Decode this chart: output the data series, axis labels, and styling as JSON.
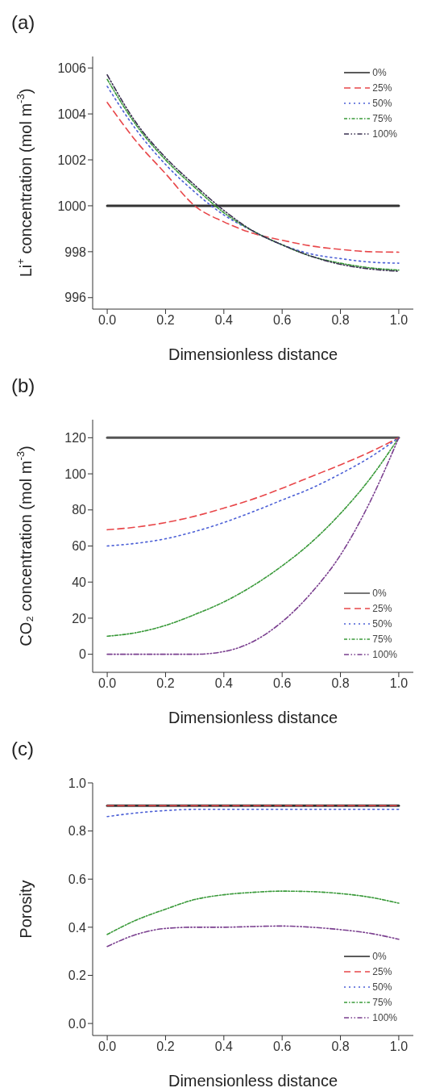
{
  "chart_data": [
    {
      "type": "line",
      "title": "(a)",
      "xlabel": "Dimensionless distance",
      "ylabel": "Li$^{+}$ concentration (mol m$^{-3}$)",
      "x": [
        0,
        0.1,
        0.2,
        0.3,
        0.4,
        0.5,
        0.6,
        0.7,
        0.8,
        0.9,
        1.0
      ],
      "xlim": [
        -0.05,
        1.05
      ],
      "xticks": [
        {
          "value": 0,
          "label": "0.0"
        },
        {
          "value": 0.2,
          "label": "0.2"
        },
        {
          "value": 0.4,
          "label": "0.4"
        },
        {
          "value": 0.6,
          "label": "0.6"
        },
        {
          "value": 0.8,
          "label": "0.8"
        },
        {
          "value": 1.0,
          "label": "1.0"
        }
      ],
      "ylim": [
        995.5,
        1006.5
      ],
      "yticks": [
        996,
        998,
        1000,
        1002,
        1004,
        1006
      ],
      "grid": false,
      "legend": "top right",
      "marker": "none",
      "series": [
        {
          "name": "0%",
          "color": "#333333",
          "line_style": "solid",
          "values": [
            1000,
            1000,
            1000,
            1000,
            1000,
            1000,
            1000,
            1000,
            1000,
            1000,
            1000
          ]
        },
        {
          "name": "25%",
          "color": "#e8474a",
          "line_style": "dashed",
          "values": [
            1004.5,
            1002.8,
            1001.4,
            1000.0,
            999.3,
            998.8,
            998.5,
            998.25,
            998.1,
            998.0,
            997.98
          ]
        },
        {
          "name": "50%",
          "color": "#4b5fd6",
          "line_style": "dotted",
          "values": [
            1005.2,
            1003.3,
            1001.8,
            1000.6,
            999.6,
            998.9,
            998.3,
            997.9,
            997.7,
            997.55,
            997.5
          ]
        },
        {
          "name": "75%",
          "color": "#3a9a3a",
          "line_style": "dashdot",
          "values": [
            1005.5,
            1003.5,
            1002.0,
            1000.8,
            999.7,
            998.9,
            998.3,
            997.8,
            997.5,
            997.3,
            997.2
          ]
        },
        {
          "name": "100%",
          "color": "#3a3050",
          "line_style": "dashdotdot",
          "values": [
            1005.7,
            1003.6,
            1002.1,
            1000.9,
            999.8,
            998.9,
            998.3,
            997.8,
            997.45,
            997.25,
            997.15
          ]
        }
      ]
    },
    {
      "type": "line",
      "title": "(b)",
      "xlabel": "Dimensionless distance",
      "ylabel": "CO₂ concentration (mol m$^{-3}$)",
      "x": [
        0,
        0.1,
        0.2,
        0.3,
        0.4,
        0.5,
        0.6,
        0.7,
        0.8,
        0.9,
        1.0
      ],
      "xlim": [
        -0.05,
        1.05
      ],
      "xticks": [
        {
          "value": 0,
          "label": "0.0"
        },
        {
          "value": 0.2,
          "label": "0.2"
        },
        {
          "value": 0.4,
          "label": "0.4"
        },
        {
          "value": 0.6,
          "label": "0.6"
        },
        {
          "value": 0.8,
          "label": "0.8"
        },
        {
          "value": 1.0,
          "label": "1.0"
        }
      ],
      "ylim": [
        -10,
        130
      ],
      "yticks": [
        0,
        20,
        40,
        60,
        80,
        100,
        120
      ],
      "grid": false,
      "legend": "bottom right",
      "marker": "none",
      "series": [
        {
          "name": "0%",
          "color": "#555555",
          "line_style": "solid",
          "values": [
            120,
            120,
            120,
            120,
            120,
            120,
            120,
            120,
            120,
            120,
            120
          ]
        },
        {
          "name": "25%",
          "color": "#e8474a",
          "line_style": "dashed",
          "values": [
            69,
            70.5,
            73,
            76.5,
            81,
            86,
            92,
            98.5,
            105,
            112,
            120
          ]
        },
        {
          "name": "50%",
          "color": "#4b5fd6",
          "line_style": "dotted",
          "values": [
            60,
            61.5,
            64,
            68,
            73,
            79,
            85.5,
            92,
            100,
            109,
            120
          ]
        },
        {
          "name": "75%",
          "color": "#3a9a3a",
          "line_style": "dashdot",
          "values": [
            10,
            12,
            16,
            22,
            29,
            38,
            49,
            62,
            78,
            97,
            120
          ]
        },
        {
          "name": "100%",
          "color": "#7a3f8f",
          "line_style": "dashdotdot",
          "values": [
            0,
            0,
            0,
            0,
            1.5,
            7,
            18,
            34,
            55,
            84,
            120
          ]
        }
      ]
    },
    {
      "type": "line",
      "title": "(c)",
      "xlabel": "Dimensionless distance",
      "ylabel": "Porosity",
      "x": [
        0,
        0.1,
        0.2,
        0.3,
        0.4,
        0.5,
        0.6,
        0.7,
        0.8,
        0.9,
        1.0
      ],
      "xlim": [
        -0.05,
        1.05
      ],
      "xticks": [
        {
          "value": 0,
          "label": "0.0"
        },
        {
          "value": 0.2,
          "label": "0.2"
        },
        {
          "value": 0.4,
          "label": "0.4"
        },
        {
          "value": 0.6,
          "label": "0.6"
        },
        {
          "value": 0.8,
          "label": "0.8"
        },
        {
          "value": 1.0,
          "label": "1.0"
        }
      ],
      "ylim": [
        -0.05,
        1.0
      ],
      "yticks": [
        {
          "value": 0,
          "label": "0.0"
        },
        {
          "value": 0.2,
          "label": "0.2"
        },
        {
          "value": 0.4,
          "label": "0.4"
        },
        {
          "value": 0.6,
          "label": "0.6"
        },
        {
          "value": 0.8,
          "label": "0.8"
        },
        {
          "value": 1.0,
          "label": "1.0"
        }
      ],
      "grid": false,
      "legend": "bottom right",
      "marker": "none",
      "series": [
        {
          "name": "0%",
          "color": "#333333",
          "line_style": "solid",
          "values": [
            0.905,
            0.905,
            0.905,
            0.905,
            0.905,
            0.905,
            0.905,
            0.905,
            0.905,
            0.905,
            0.905
          ]
        },
        {
          "name": "25%",
          "color": "#e8474a",
          "line_style": "dashed",
          "values": [
            0.905,
            0.905,
            0.905,
            0.905,
            0.905,
            0.905,
            0.905,
            0.905,
            0.905,
            0.905,
            0.905
          ]
        },
        {
          "name": "50%",
          "color": "#4b5fd6",
          "line_style": "dotted",
          "values": [
            0.86,
            0.875,
            0.885,
            0.89,
            0.89,
            0.89,
            0.89,
            0.89,
            0.89,
            0.89,
            0.89
          ]
        },
        {
          "name": "75%",
          "color": "#3a9a3a",
          "line_style": "dashdot",
          "values": [
            0.37,
            0.43,
            0.475,
            0.515,
            0.535,
            0.545,
            0.55,
            0.548,
            0.54,
            0.525,
            0.5
          ]
        },
        {
          "name": "100%",
          "color": "#7a3f8f",
          "line_style": "dashdotdot",
          "values": [
            0.32,
            0.37,
            0.395,
            0.4,
            0.4,
            0.403,
            0.405,
            0.4,
            0.39,
            0.375,
            0.35
          ]
        }
      ]
    }
  ]
}
